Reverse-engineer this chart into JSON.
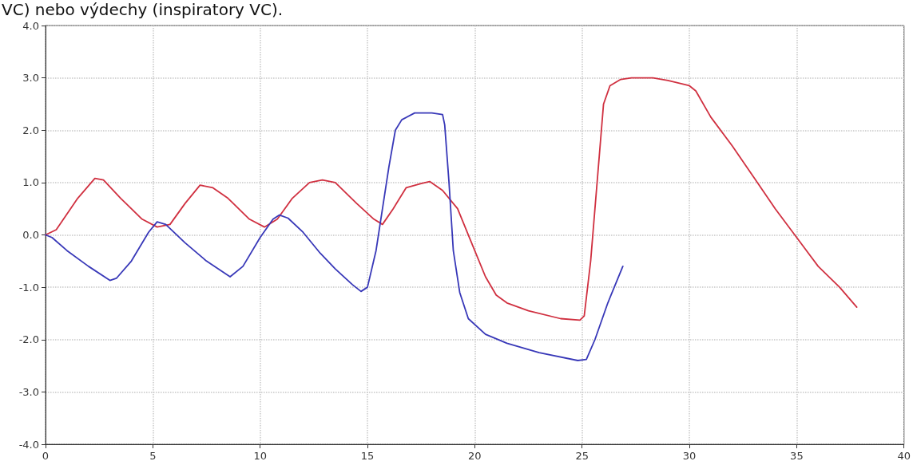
{
  "chart_data": {
    "type": "line",
    "annotations": [
      "VC) nebo výdechy (inspiratory VC)."
    ],
    "xlim": [
      0,
      40
    ],
    "xticks": [
      0,
      5,
      10,
      15,
      20,
      25,
      30,
      35,
      40
    ],
    "ylim": [
      -4,
      4
    ],
    "yticks": [
      {
        "value": -4,
        "label": "-4.0"
      },
      {
        "value": -3,
        "label": "-3.0"
      },
      {
        "value": -2,
        "label": "-2.0"
      },
      {
        "value": -1,
        "label": "-1.0"
      },
      {
        "value": 0,
        "label": "0.0"
      },
      {
        "value": 1,
        "label": "1.0"
      },
      {
        "value": 2,
        "label": "2.0"
      },
      {
        "value": 3,
        "label": "3.0"
      },
      {
        "value": 4,
        "label": "4.0"
      }
    ],
    "grid": true,
    "marker": "none",
    "line_style": "solid",
    "series": [
      {
        "color": "#d03040",
        "x": [
          0,
          0.5,
          1.5,
          2.3,
          2.7,
          3.5,
          4.5,
          5.2,
          5.8,
          6.5,
          7.2,
          7.8,
          8.5,
          9.5,
          10.2,
          10.8,
          11.5,
          12.3,
          12.9,
          13.5,
          14.5,
          15.3,
          15.7,
          16.2,
          16.8,
          17.5,
          17.9,
          18.5,
          19.2,
          19.8,
          20.5,
          21,
          21.5,
          22.5,
          24,
          24.9,
          25.1,
          25.4,
          25.6,
          25.8,
          26,
          26.3,
          26.8,
          27.3,
          28.3,
          29,
          30,
          30.3,
          31,
          32,
          33,
          34,
          35,
          36,
          37,
          37.8
        ],
        "values": [
          0,
          0.1,
          0.7,
          1.08,
          1.05,
          0.7,
          0.3,
          0.15,
          0.2,
          0.6,
          0.95,
          0.9,
          0.7,
          0.3,
          0.15,
          0.3,
          0.7,
          1.0,
          1.05,
          1.0,
          0.6,
          0.3,
          0.2,
          0.5,
          0.9,
          0.98,
          1.02,
          0.85,
          0.5,
          -0.1,
          -0.8,
          -1.15,
          -1.3,
          -1.45,
          -1.6,
          -1.63,
          -1.55,
          -0.5,
          0.5,
          1.5,
          2.5,
          2.85,
          2.97,
          3.0,
          3.0,
          2.95,
          2.85,
          2.75,
          2.25,
          1.7,
          1.1,
          0.5,
          -0.05,
          -0.6,
          -1.0,
          -1.38
        ]
      },
      {
        "color": "#3838b8",
        "x": [
          0,
          0.3,
          1,
          2,
          3,
          3.3,
          4,
          4.8,
          5.2,
          5.6,
          6.5,
          7.5,
          8.6,
          9.2,
          10,
          10.6,
          10.9,
          11.3,
          12,
          12.8,
          13.5,
          14.3,
          14.7,
          15,
          15.4,
          15.7,
          16,
          16.3,
          16.6,
          17.2,
          18,
          18.5,
          18.6,
          18.8,
          19,
          19.3,
          19.7,
          20.5,
          21.5,
          23,
          24.8,
          25.2,
          25.6,
          26.2,
          26.9
        ],
        "values": [
          0,
          -0.05,
          -0.3,
          -0.6,
          -0.87,
          -0.83,
          -0.5,
          0.05,
          0.25,
          0.2,
          -0.15,
          -0.5,
          -0.8,
          -0.6,
          -0.05,
          0.3,
          0.38,
          0.32,
          0.05,
          -0.35,
          -0.65,
          -0.95,
          -1.08,
          -1.0,
          -0.3,
          0.5,
          1.3,
          2.0,
          2.2,
          2.33,
          2.33,
          2.3,
          2.1,
          1.0,
          -0.3,
          -1.1,
          -1.6,
          -1.9,
          -2.07,
          -2.25,
          -2.4,
          -2.38,
          -2.0,
          -1.3,
          -0.6
        ]
      }
    ]
  }
}
